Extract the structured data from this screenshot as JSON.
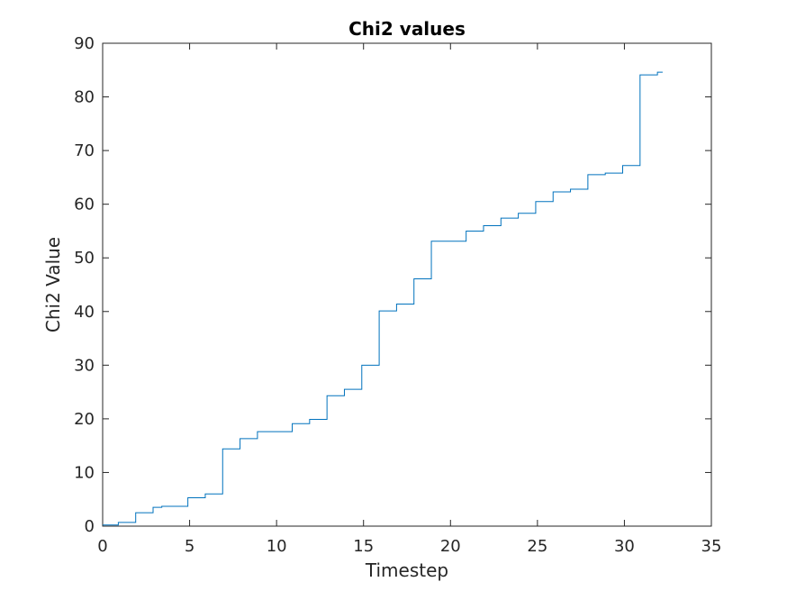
{
  "chart_data": {
    "type": "line",
    "title": "Chi2 values",
    "xlabel": "Timestep",
    "ylabel": "Chi2 Value",
    "xlim": [
      0,
      35
    ],
    "ylim": [
      0,
      90
    ],
    "xticks": [
      0,
      5,
      10,
      15,
      20,
      25,
      30,
      35
    ],
    "yticks": [
      0,
      10,
      20,
      30,
      40,
      50,
      60,
      70,
      80,
      90
    ],
    "xtick_labels": [
      "0",
      "5",
      "10",
      "15",
      "20",
      "25",
      "30",
      "35"
    ],
    "ytick_labels": [
      "0",
      "10",
      "20",
      "30",
      "40",
      "50",
      "60",
      "70",
      "80",
      "90"
    ],
    "grid": false,
    "line_color": "#0072BD",
    "series": [
      {
        "step": "post",
        "x": [
          0,
          0.9,
          1.9,
          2.9,
          3.4,
          4.9,
          5.9,
          6.9,
          7.9,
          8.9,
          10.9,
          11.9,
          12.9,
          13.9,
          14.9,
          15.9,
          16.9,
          17.9,
          18.9,
          20.9,
          21.9,
          22.9,
          23.9,
          24.9,
          25.9,
          26.9,
          27.9,
          28.9,
          29.9,
          30.9,
          31.9,
          32.2
        ],
        "y": [
          0.2,
          0.7,
          2.5,
          3.5,
          3.7,
          5.3,
          6.0,
          14.4,
          16.3,
          17.6,
          19.1,
          19.9,
          24.3,
          25.5,
          30.0,
          40.1,
          41.4,
          46.1,
          53.1,
          55.0,
          56.0,
          57.4,
          58.3,
          60.5,
          62.3,
          62.8,
          65.5,
          65.8,
          67.2,
          84.1,
          84.6,
          84.6
        ]
      }
    ]
  }
}
